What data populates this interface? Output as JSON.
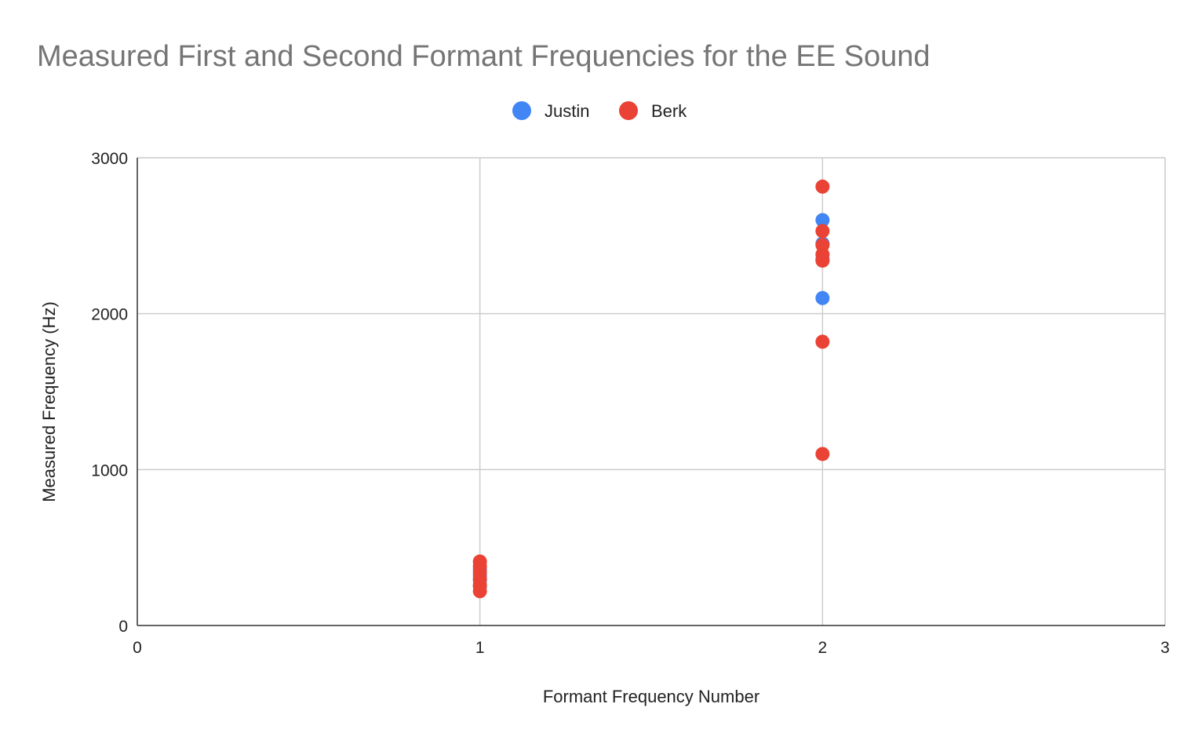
{
  "chart_data": {
    "type": "scatter",
    "title": "Measured First and Second Formant Frequencies for the EE Sound",
    "xlabel": "Formant Frequency Number",
    "ylabel": "Measured Frequency (Hz)",
    "xlim": [
      0,
      3
    ],
    "ylim": [
      0,
      3000
    ],
    "x_ticks": [
      0,
      1,
      2,
      3
    ],
    "y_ticks": [
      0,
      1000,
      2000,
      3000
    ],
    "grid": true,
    "legend_position": "top-center",
    "series": [
      {
        "name": "Justin",
        "color": "#4285F4",
        "points": [
          {
            "x": 1,
            "y": 250
          },
          {
            "x": 1,
            "y": 290
          },
          {
            "x": 1,
            "y": 320
          },
          {
            "x": 1,
            "y": 360
          },
          {
            "x": 2,
            "y": 2100
          },
          {
            "x": 2,
            "y": 2350
          },
          {
            "x": 2,
            "y": 2450
          },
          {
            "x": 2,
            "y": 2600
          }
        ]
      },
      {
        "name": "Berk",
        "color": "#EA4335",
        "points": [
          {
            "x": 1,
            "y": 220
          },
          {
            "x": 1,
            "y": 260
          },
          {
            "x": 1,
            "y": 300
          },
          {
            "x": 1,
            "y": 340
          },
          {
            "x": 1,
            "y": 380
          },
          {
            "x": 1,
            "y": 410
          },
          {
            "x": 2,
            "y": 1100
          },
          {
            "x": 2,
            "y": 1820
          },
          {
            "x": 2,
            "y": 2340
          },
          {
            "x": 2,
            "y": 2380
          },
          {
            "x": 2,
            "y": 2440
          },
          {
            "x": 2,
            "y": 2530
          },
          {
            "x": 2,
            "y": 2815
          }
        ]
      }
    ]
  }
}
